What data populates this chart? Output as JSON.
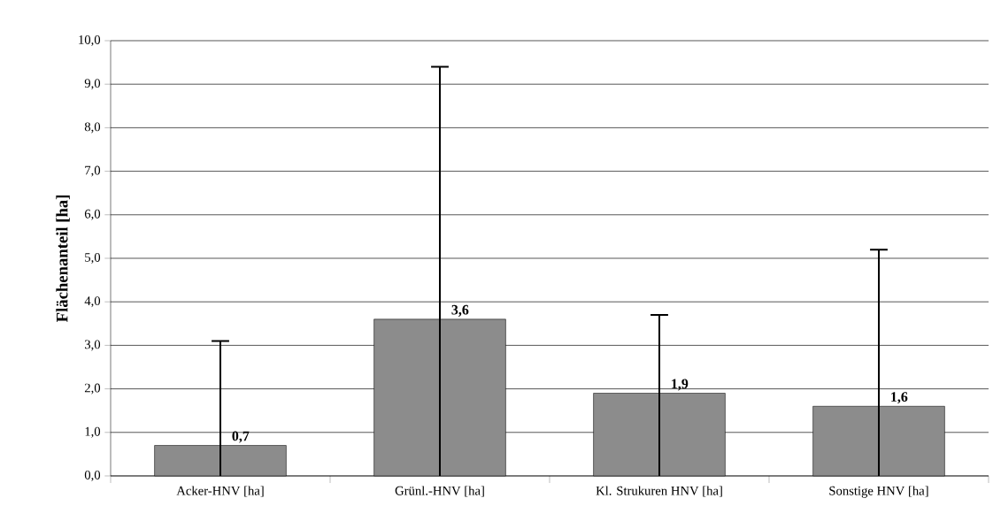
{
  "chart_data": {
    "type": "bar",
    "ylabel": "**Flächenanteil [ha]**",
    "categories": [
      "Acker-HNV [ha]",
      "Grünl.-HNV [ha]",
      "Kl. Strukuren HNV [ha]",
      "Sonstige HNV [ha]"
    ],
    "values": [
      0.7,
      3.6,
      1.9,
      1.6
    ],
    "value_labels": [
      "0,7",
      "3,6",
      "1,9",
      "1,6"
    ],
    "errors": [
      [
        0,
        3.1
      ],
      [
        0,
        9.4
      ],
      [
        0,
        3.7
      ],
      [
        0,
        5.2
      ]
    ],
    "color": "#8c8c8c",
    "ylim": [
      0,
      10
    ],
    "yticks": [
      {
        "value": 0,
        "label": "0,0"
      },
      {
        "value": 1,
        "label": "1,0"
      },
      {
        "value": 2,
        "label": "2,0"
      },
      {
        "value": 3,
        "label": "3,0"
      },
      {
        "value": 4,
        "label": "4,0"
      },
      {
        "value": 5,
        "label": "5,0"
      },
      {
        "value": 6,
        "label": "6,0"
      },
      {
        "value": 7,
        "label": "7,0"
      },
      {
        "value": 8,
        "label": "8,0"
      },
      {
        "value": 9,
        "label": "9,0"
      },
      {
        "value": 10,
        "label": "10,0"
      }
    ],
    "grid": "y"
  }
}
